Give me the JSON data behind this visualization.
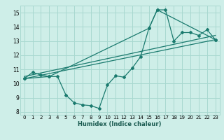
{
  "xlabel": "Humidex (Indice chaleur)",
  "xlim": [
    -0.5,
    23.5
  ],
  "ylim": [
    7.8,
    15.5
  ],
  "xticks": [
    0,
    1,
    2,
    3,
    4,
    5,
    6,
    7,
    8,
    9,
    10,
    11,
    12,
    13,
    14,
    15,
    16,
    17,
    18,
    19,
    20,
    21,
    22,
    23
  ],
  "yticks": [
    8,
    9,
    10,
    11,
    12,
    13,
    14,
    15
  ],
  "bg_color": "#ceeee8",
  "grid_color": "#a8d8d0",
  "line_color": "#1a7a6e",
  "series_zigzag": {
    "x": [
      0,
      1,
      2,
      3,
      4,
      5,
      6,
      7,
      8,
      9,
      10,
      11,
      12,
      13,
      14,
      15,
      16,
      17,
      18,
      19,
      20,
      21,
      22,
      23
    ],
    "y": [
      10.35,
      10.8,
      10.6,
      10.5,
      10.5,
      9.2,
      8.65,
      8.5,
      8.45,
      8.25,
      9.9,
      10.55,
      10.45,
      11.1,
      11.9,
      13.9,
      15.2,
      15.2,
      13.0,
      13.6,
      13.6,
      13.4,
      13.8,
      13.1
    ]
  },
  "series_upper": {
    "x": [
      0,
      3,
      15,
      16,
      23
    ],
    "y": [
      10.35,
      10.5,
      13.9,
      15.2,
      13.1
    ]
  },
  "series_lower": {
    "x": [
      0,
      3,
      10,
      23
    ],
    "y": [
      10.35,
      10.5,
      9.9,
      13.1
    ]
  },
  "series_straight1": {
    "x": [
      0,
      23
    ],
    "y": [
      10.35,
      13.1
    ]
  },
  "series_straight2": {
    "x": [
      0,
      23
    ],
    "y": [
      10.35,
      13.1
    ]
  }
}
